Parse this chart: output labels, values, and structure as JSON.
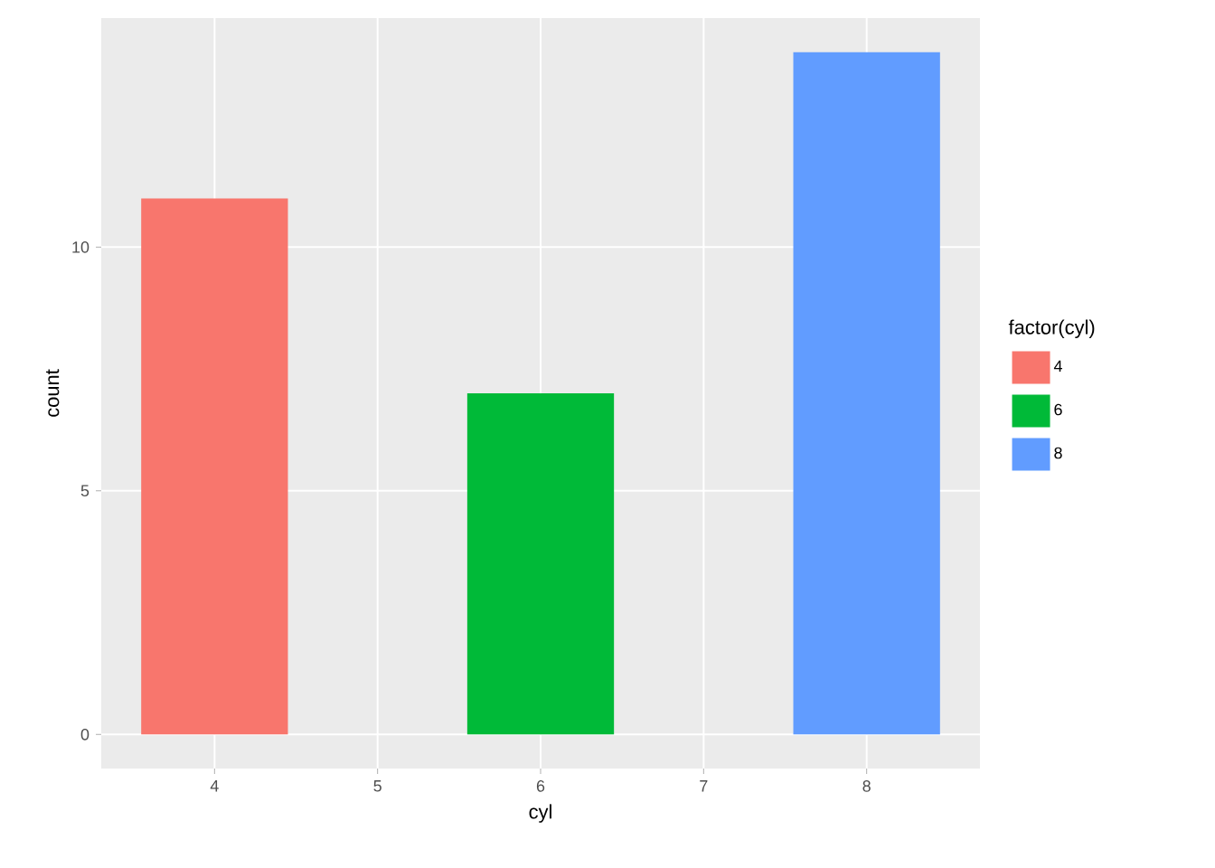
{
  "chart_data": {
    "type": "bar",
    "xlabel": "cyl",
    "ylabel": "count",
    "legend_title": "factor(cyl)",
    "series": [
      {
        "name": "4",
        "color": "#F8766D",
        "x": [
          4
        ],
        "values": [
          11
        ]
      },
      {
        "name": "6",
        "color": "#00BA38",
        "x": [
          6
        ],
        "values": [
          7
        ]
      },
      {
        "name": "8",
        "color": "#619CFF",
        "x": [
          8
        ],
        "values": [
          14
        ]
      }
    ],
    "xlim": [
      3.305,
      8.695
    ],
    "ylim": [
      -0.7,
      14.7
    ],
    "xticks": [
      4,
      5,
      6,
      7,
      8
    ],
    "yticks": [
      0,
      5,
      10
    ],
    "grid": true,
    "legend": "right"
  }
}
